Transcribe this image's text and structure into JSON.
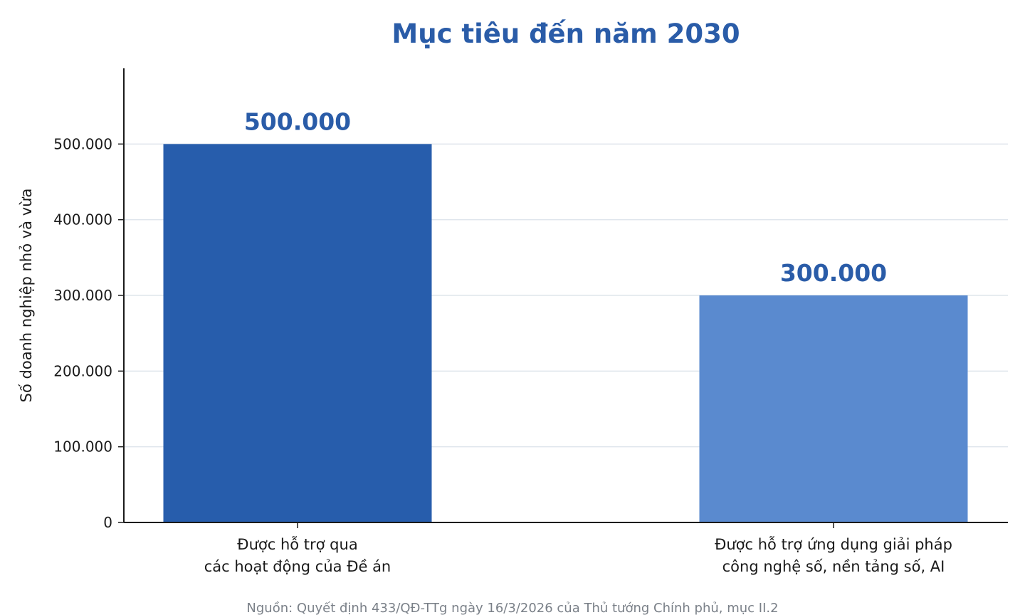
{
  "chart_data": {
    "type": "bar",
    "title": "Mục tiêu đến năm 2030",
    "xlabel": "",
    "ylabel": "Số doanh nghiệp nhỏ và vừa",
    "categories": [
      [
        "Được hỗ trợ qua",
        "các hoạt động của Đề án"
      ],
      [
        "Được hỗ trợ ứng dụng giải pháp",
        "công nghệ số, nền tảng số, AI"
      ]
    ],
    "values": [
      500000,
      300000
    ],
    "value_labels": [
      "500.000",
      "300.000"
    ],
    "bar_colors": [
      "#275dac",
      "#5a8acf"
    ],
    "ylim": [
      0,
      600000
    ],
    "yticks": [
      0,
      100000,
      200000,
      300000,
      400000,
      500000
    ],
    "ytick_labels": [
      "0",
      "100.000",
      "200.000",
      "300.000",
      "400.000",
      "500.000"
    ],
    "grid": true,
    "grid_color": "#dfe5ec",
    "accent_color": "#2a5ca8",
    "source_note": "Nguồn: Quyết định 433/QĐ-TTg ngày 16/3/2026 của Thủ tướng Chính phủ, mục II.2"
  }
}
